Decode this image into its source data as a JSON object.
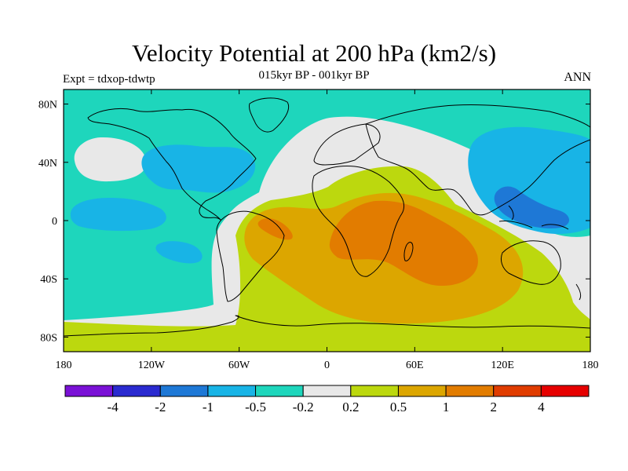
{
  "title": "Velocity Potential at 200 hPa (km2/s)",
  "subtitle": "015kyr BP - 001kyr BP",
  "left_label": "Expt = tdxop-tdwtp",
  "right_label": "ANN",
  "map": {
    "lon_range": [
      -180,
      180
    ],
    "lat_range": [
      -90,
      90
    ],
    "x_ticks": [
      {
        "lon": -180,
        "label": "180"
      },
      {
        "lon": -120,
        "label": "120W"
      },
      {
        "lon": -60,
        "label": "60W"
      },
      {
        "lon": 0,
        "label": "0"
      },
      {
        "lon": 60,
        "label": "60E"
      },
      {
        "lon": 120,
        "label": "120E"
      },
      {
        "lon": 180,
        "label": "180"
      }
    ],
    "y_ticks": [
      {
        "lat": 80,
        "label": "80N"
      },
      {
        "lat": 40,
        "label": "40N"
      },
      {
        "lat": 0,
        "label": "0"
      },
      {
        "lat": -40,
        "label": "40S"
      },
      {
        "lat": -80,
        "label": "80S"
      }
    ]
  },
  "colorbar": {
    "colors": [
      "#7a11d6",
      "#2a2ad0",
      "#1e78d6",
      "#18b4e6",
      "#1ed6bc",
      "#e8e8e8",
      "#bcd80e",
      "#dca600",
      "#e27c00",
      "#e03c00",
      "#e60000"
    ],
    "labels": [
      "-4",
      "-2",
      "-1",
      "-0.5",
      "-0.2",
      "0.2",
      "0.5",
      "1",
      "2",
      "4"
    ]
  },
  "level_colors": {
    "cyan": "#1ed6bc",
    "light_blue": "#18b4e6",
    "gray": "#e8e8e8",
    "yellow_green": "#bcd80e",
    "gold": "#dca600",
    "orange": "#e27c00"
  }
}
